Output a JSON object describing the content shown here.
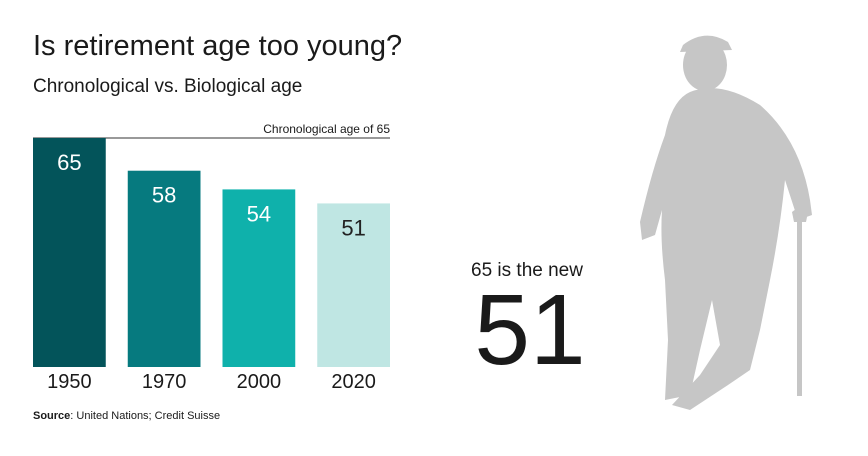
{
  "chart_data": {
    "type": "bar",
    "title": "Is retirement age too young?",
    "subtitle": "Chronological vs. Biological age",
    "categories": [
      "1950",
      "1970",
      "2000",
      "2020"
    ],
    "values": [
      65,
      58,
      54,
      51
    ],
    "colors": [
      "#03545a",
      "#067a7f",
      "#0fb1ab",
      "#bfe6e3"
    ],
    "value_label_colors": [
      "#ffffff",
      "#ffffff",
      "#ffffff",
      "#222222"
    ],
    "ylim": [
      16,
      65
    ],
    "reference_line": {
      "value": 65,
      "label": "Chronological age of 65"
    },
    "callout": {
      "text": "65 is the new",
      "number": 51
    },
    "source": {
      "label": "Source",
      "text": ": United Nations; Credit Suisse"
    }
  }
}
